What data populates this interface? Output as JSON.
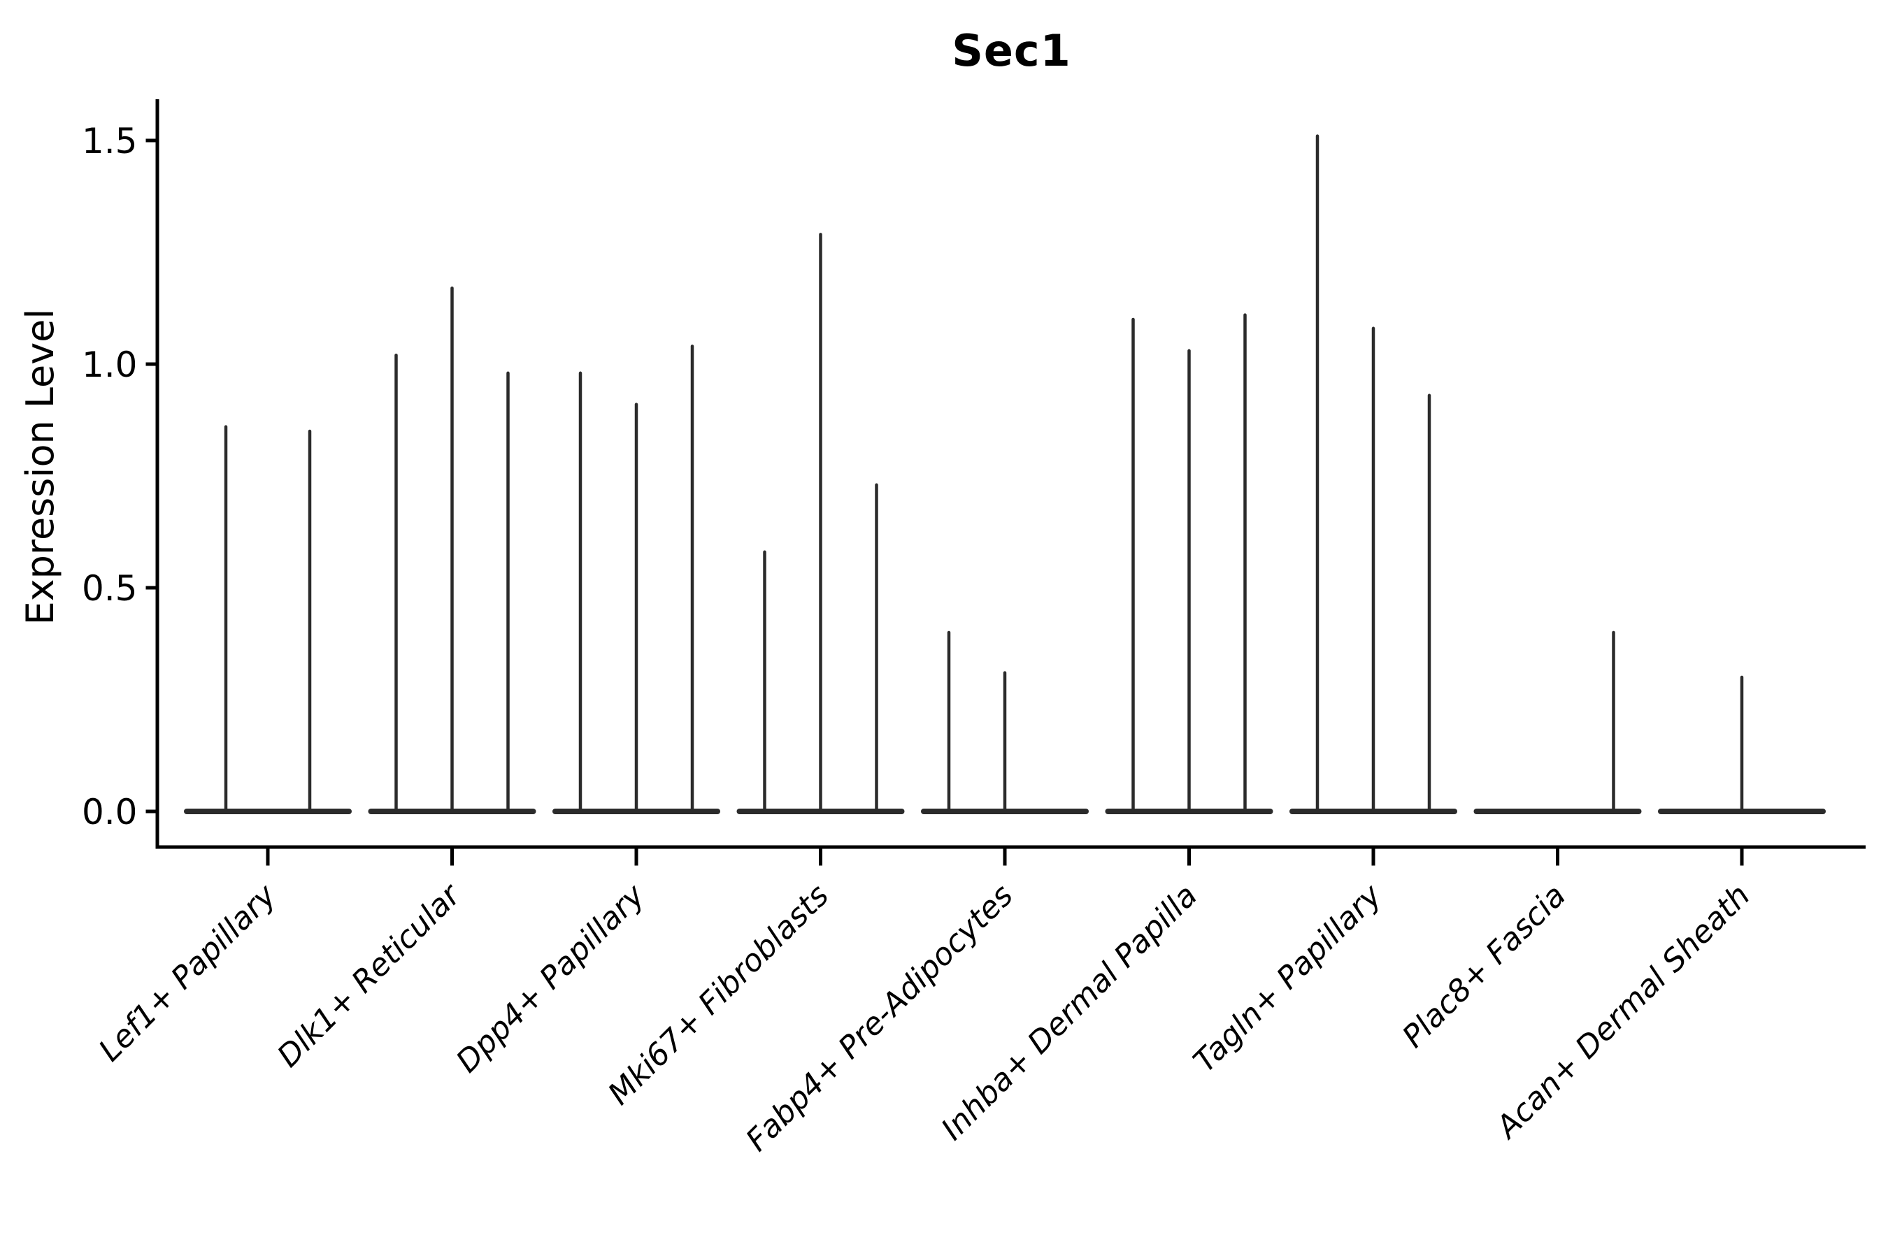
{
  "chart_data": {
    "type": "violin",
    "title": "Sec1",
    "ylabel": "Expression Level",
    "xlabel": "",
    "ylim": [
      0,
      1.55
    ],
    "y_ticks": [
      0.0,
      0.5,
      1.0,
      1.5
    ],
    "y_tick_labels": [
      "0.0",
      "0.5",
      "1.0",
      "1.5"
    ],
    "grid": false,
    "legend_position": "none",
    "categories": [
      "Lef1+ Papillary",
      "Dlk1+ Reticular",
      "Dpp4+ Papillary",
      "Mki67+ Fibroblasts",
      "Fabp4+ Pre-Adipocytes",
      "Inhba+ Dermal Papilla",
      "Tagln+ Papillary",
      "Plac8+ Fascia",
      "Acan+ Dermal Sheath"
    ],
    "groups": [
      {
        "label": "Lef1+ Papillary",
        "violins": [
          {
            "offset": -60,
            "max": 0.86
          },
          {
            "offset": 60,
            "max": 0.85
          }
        ]
      },
      {
        "label": "Dlk1+ Reticular",
        "violins": [
          {
            "offset": -80,
            "max": 1.02
          },
          {
            "offset": 0,
            "max": 1.17
          },
          {
            "offset": 80,
            "max": 0.98
          }
        ]
      },
      {
        "label": "Dpp4+ Papillary",
        "violins": [
          {
            "offset": -80,
            "max": 0.98
          },
          {
            "offset": 0,
            "max": 0.91
          },
          {
            "offset": 80,
            "max": 1.04
          }
        ]
      },
      {
        "label": "Mki67+ Fibroblasts",
        "violins": [
          {
            "offset": -80,
            "max": 0.58
          },
          {
            "offset": 0,
            "max": 1.29
          },
          {
            "offset": 80,
            "max": 0.73
          }
        ]
      },
      {
        "label": "Fabp4+ Pre-Adipocytes",
        "violins": [
          {
            "offset": -80,
            "max": 0.4
          },
          {
            "offset": 0,
            "max": 0.31
          },
          {
            "offset": 80,
            "max": 0
          }
        ]
      },
      {
        "label": "Inhba+ Dermal Papilla",
        "violins": [
          {
            "offset": -80,
            "max": 1.1
          },
          {
            "offset": 0,
            "max": 1.03
          },
          {
            "offset": 80,
            "max": 1.11
          }
        ]
      },
      {
        "label": "Tagln+ Papillary",
        "violins": [
          {
            "offset": -80,
            "max": 1.51
          },
          {
            "offset": 0,
            "max": 1.08
          },
          {
            "offset": 80,
            "max": 0.93
          }
        ]
      },
      {
        "label": "Plac8+ Fascia",
        "violins": [
          {
            "offset": -80,
            "max": 0
          },
          {
            "offset": 0,
            "max": 0
          },
          {
            "offset": 80,
            "max": 0.4
          }
        ]
      },
      {
        "label": "Acan+ Dermal Sheath",
        "violins": [
          {
            "offset": -80,
            "max": 0
          },
          {
            "offset": 0,
            "max": 0.3
          },
          {
            "offset": 80,
            "max": 0
          }
        ]
      }
    ]
  },
  "colors": {
    "background": "#ffffff",
    "axis": "#000000",
    "text": "#000000",
    "violin": "#2b2b2b"
  }
}
